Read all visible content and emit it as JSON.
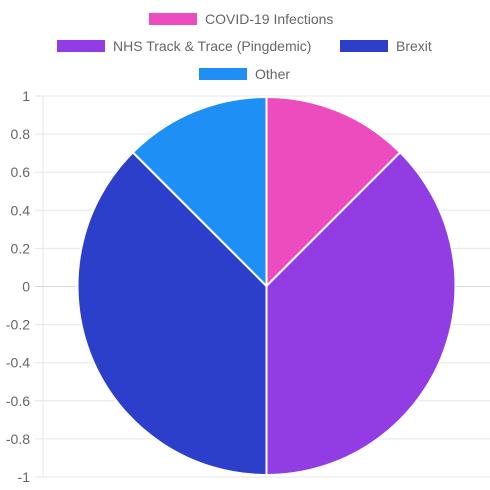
{
  "chart_data": {
    "type": "pie",
    "labels": [
      "COVID-19 Infections",
      "NHS Track & Trace (Pingdemic)",
      "Brexit",
      "Other"
    ],
    "values": [
      12.5,
      37.5,
      37.5,
      12.5
    ],
    "colors": [
      "#ec4cbe",
      "#923ce3",
      "#2c3fca",
      "#1e90f5"
    ],
    "legend_position": "top",
    "y_axis": {
      "ticks": [
        "1",
        "0.8",
        "0.6",
        "0.4",
        "0.2",
        "0",
        "-0.2",
        "-0.4",
        "-0.6",
        "-0.8",
        "-1"
      ],
      "range": [
        -1,
        1
      ]
    },
    "grid": true
  }
}
